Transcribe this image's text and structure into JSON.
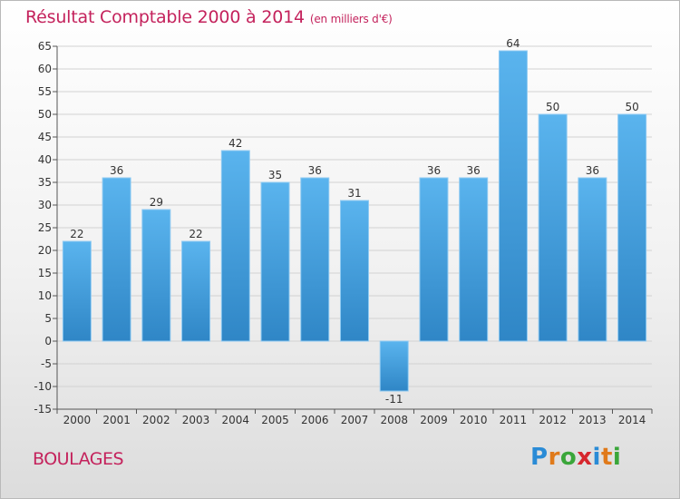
{
  "title": "Résultat Comptable 2000 à 2014",
  "subtitle": "(en milliers d'€)",
  "commune": "BOULAGES",
  "logo": {
    "text": "Proxiti",
    "letter_colors": [
      "#2a8bd6",
      "#e07a1a",
      "#3aa63a",
      "#d6262d",
      "#2a8bd6",
      "#e07a1a",
      "#3aa63a"
    ]
  },
  "colors": {
    "title": "#c4225c",
    "bar_light": "#5ab4ee",
    "bar_dark": "#2f86c6",
    "axis": "#555555"
  },
  "chart_data": {
    "type": "bar",
    "title": "Résultat Comptable 2000 à 2014",
    "subtitle": "(en milliers d'€)",
    "categories": [
      "2000",
      "2001",
      "2002",
      "2003",
      "2004",
      "2005",
      "2006",
      "2007",
      "2008",
      "2009",
      "2010",
      "2011",
      "2012",
      "2013",
      "2014"
    ],
    "values": [
      22,
      36,
      29,
      22,
      42,
      35,
      36,
      31,
      -11,
      36,
      36,
      64,
      50,
      36,
      50
    ],
    "ylim": [
      -15,
      65
    ],
    "yticks": [
      -15,
      -10,
      -5,
      0,
      5,
      10,
      15,
      20,
      25,
      30,
      35,
      40,
      45,
      50,
      55,
      60,
      65
    ],
    "grid": true,
    "legend": "none"
  }
}
